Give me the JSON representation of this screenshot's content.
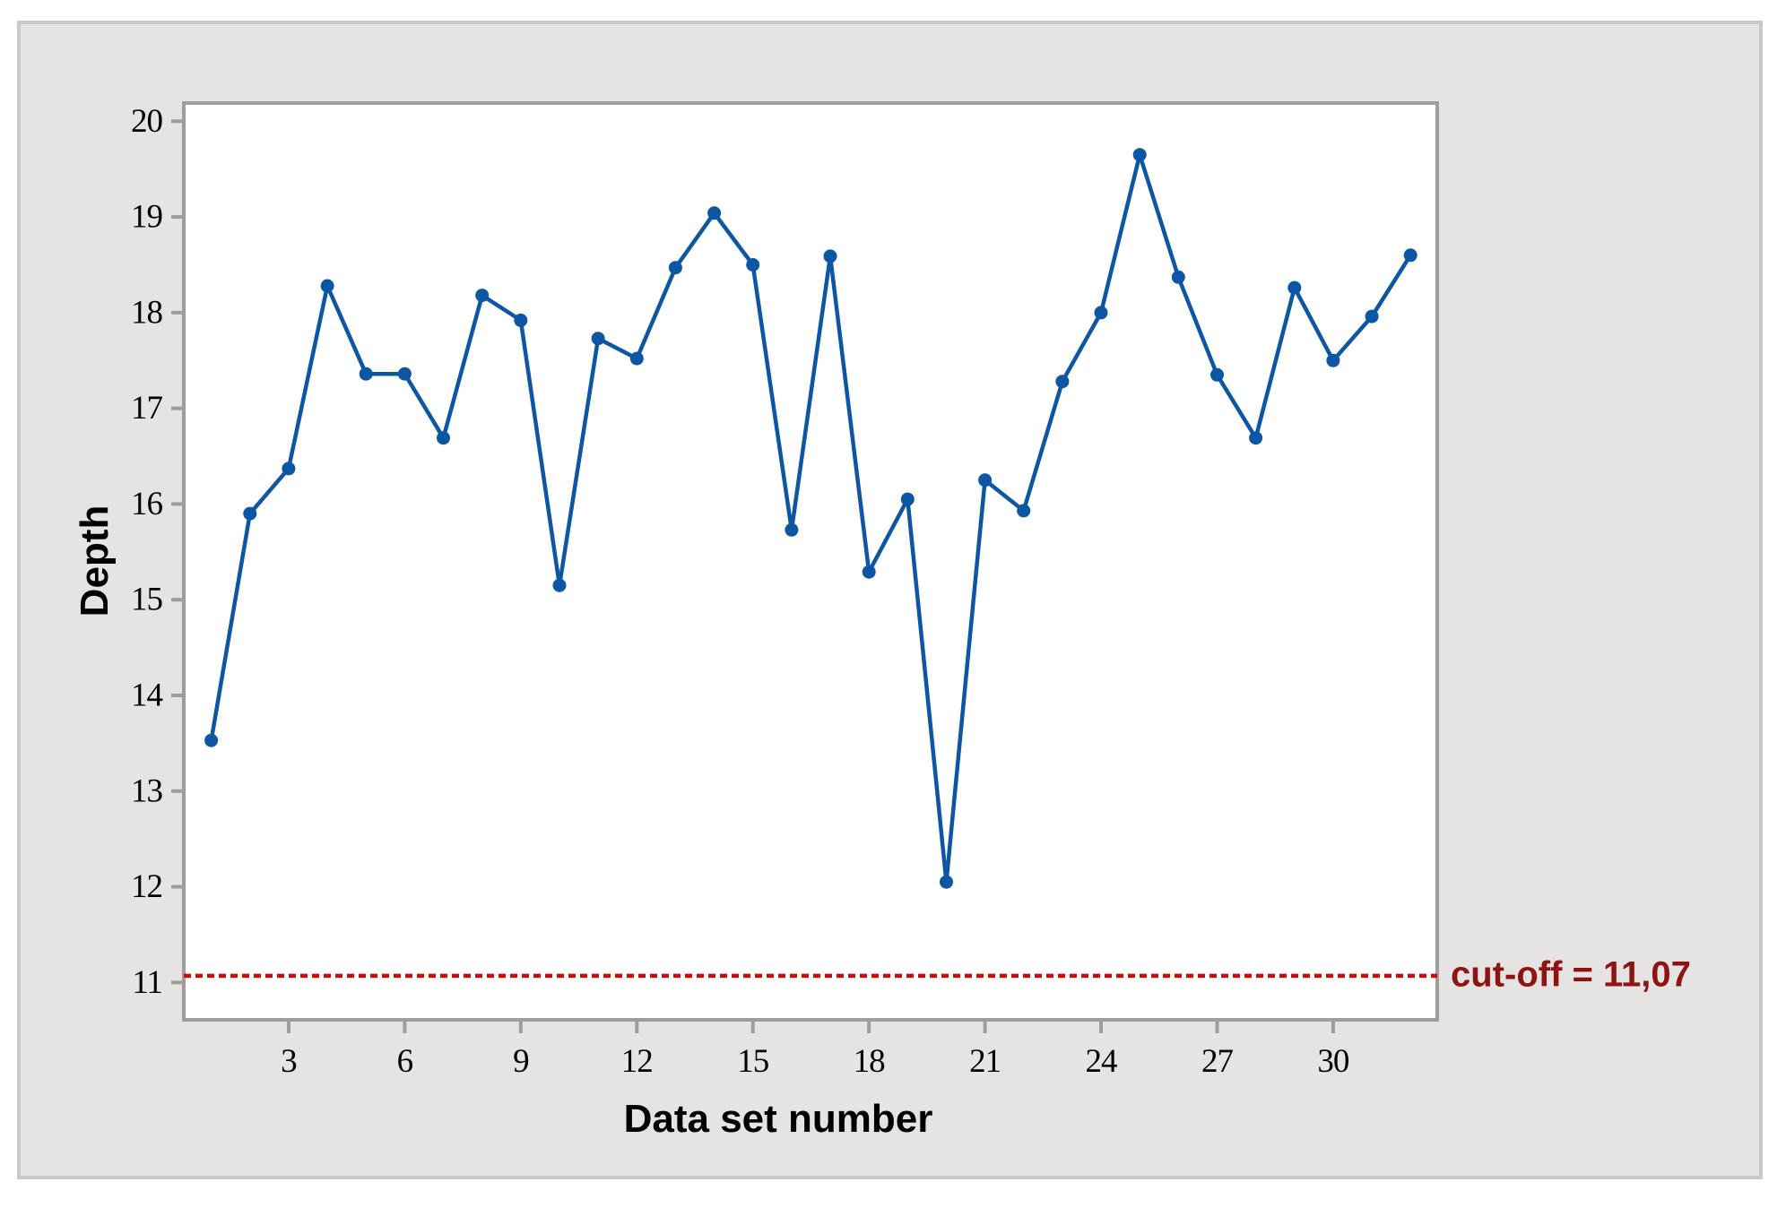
{
  "figure": {
    "ylabel": "Depth",
    "xlabel": "Data set number",
    "cutoff_label": "cut-off = 11,07"
  },
  "colors": {
    "panel_background": "#e5e4e2",
    "panel_border": "#c9c9c9",
    "plot_background": "#ffffff",
    "plot_frame": "#9d9d9d",
    "series_blue": "#0d56a3",
    "cutoff_red": "#cc0a0a",
    "cutoff_text_dark_red": "#8e1414",
    "tick_label_black": "#000000"
  },
  "chart_data": {
    "type": "line",
    "title": "",
    "xlabel": "Data set number",
    "ylabel": "Depth",
    "x": [
      1,
      2,
      3,
      4,
      5,
      6,
      7,
      8,
      9,
      10,
      11,
      12,
      13,
      14,
      15,
      16,
      17,
      18,
      19,
      20,
      21,
      22,
      23,
      24,
      25,
      26,
      27,
      28,
      29,
      30,
      31,
      32
    ],
    "values": [
      13.53,
      15.9,
      16.37,
      18.28,
      17.36,
      17.36,
      16.69,
      18.18,
      17.92,
      15.15,
      17.73,
      17.52,
      18.47,
      19.04,
      18.5,
      15.73,
      18.59,
      15.29,
      16.05,
      12.05,
      16.25,
      15.93,
      17.28,
      18.0,
      19.65,
      18.37,
      17.35,
      16.69,
      18.26,
      17.5,
      17.96,
      18.6
    ],
    "x_ticks": [
      3,
      6,
      9,
      12,
      15,
      18,
      21,
      24,
      27,
      30
    ],
    "y_ticks": [
      11,
      12,
      13,
      14,
      15,
      16,
      17,
      18,
      19,
      20
    ],
    "xlim": [
      0.29,
      32.69
    ],
    "ylim": [
      10.61,
      20.19
    ],
    "grid": false,
    "legend": "none",
    "marker": "filled-circle",
    "reference_line": {
      "value": 11.07,
      "label": "cut-off = 11,07",
      "style": "dashed",
      "position": "right-of-plot"
    }
  }
}
